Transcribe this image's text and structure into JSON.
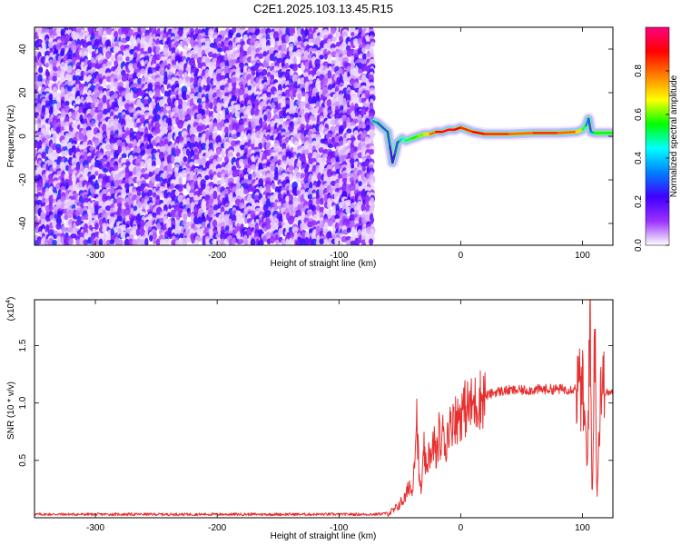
{
  "chart_data": [
    {
      "type": "heatmap",
      "title": "C2E1.2025.103.13.45.R15",
      "xlabel": "Height of straight line (km)",
      "ylabel": "Frequency (Hz)",
      "xlim": [
        -350,
        125
      ],
      "ylim": [
        -50,
        50
      ],
      "x_ticks": [
        -300,
        -200,
        -100,
        0,
        100
      ],
      "x_tick_labels": [
        "-300",
        "-200",
        "-100",
        "0",
        "100"
      ],
      "y_ticks": [
        -40,
        -20,
        0,
        20,
        40
      ],
      "y_tick_labels": [
        "-40",
        "-20",
        "0",
        "20",
        "40"
      ],
      "noise_region_x": [
        -350,
        -72
      ],
      "noise_level": "low-medium random (0.0-0.2)",
      "signal_trace": {
        "x": [
          -72,
          -68,
          -64,
          -60,
          -58,
          -56,
          -54,
          -52,
          -50,
          -48,
          -45,
          -40,
          -35,
          -30,
          -25,
          -20,
          -15,
          -10,
          -5,
          0,
          5,
          10,
          20,
          40,
          60,
          80,
          95,
          100,
          103,
          105,
          107,
          110,
          125
        ],
        "freq_hz": [
          7,
          6,
          4,
          2,
          -5,
          -12,
          -8,
          -3,
          -2,
          -1,
          -2,
          -1,
          0,
          1,
          1,
          2,
          2,
          3,
          3,
          4,
          3,
          2,
          1,
          1,
          1.5,
          1.5,
          2,
          3,
          5,
          8,
          2,
          1.5,
          1.5
        ],
        "amplitude": [
          0.35,
          0.3,
          0.3,
          0.3,
          0.25,
          0.25,
          0.3,
          0.3,
          0.4,
          0.45,
          0.5,
          0.55,
          0.6,
          0.7,
          0.8,
          0.9,
          0.95,
          0.95,
          0.9,
          0.85,
          0.85,
          0.9,
          0.85,
          0.8,
          0.85,
          0.8,
          0.7,
          0.5,
          0.35,
          0.3,
          0.35,
          0.55,
          0.5
        ]
      },
      "colorbar": {
        "label": "Normalized spectral amplitude",
        "range": [
          0.0,
          1.0
        ],
        "ticks": [
          0.0,
          0.2,
          0.4,
          0.6,
          0.8
        ],
        "tick_labels": [
          "0.0",
          "0.2",
          "0.4",
          "0.6",
          "0.8"
        ],
        "colormap": [
          "#ffffff",
          "#9b30ff",
          "#3f00ff",
          "#0080ff",
          "#00ffff",
          "#00ff00",
          "#ffff00",
          "#ff8000",
          "#ff0000",
          "#ff0080"
        ]
      }
    },
    {
      "type": "line",
      "xlabel": "Height of straight line (km)",
      "ylabel": "SNR (10 * v/v)",
      "y_scale_label": "(x10",
      "y_scale_exp": "4",
      "xlim": [
        -350,
        125
      ],
      "ylim": [
        0,
        19000
      ],
      "x_ticks": [
        -300,
        -200,
        -100,
        0,
        100
      ],
      "x_tick_labels": [
        "-300",
        "-200",
        "-100",
        "0",
        "100"
      ],
      "y_ticks": [
        5000,
        10000,
        15000
      ],
      "y_tick_labels": [
        "0.5",
        "1.0",
        "1.5"
      ],
      "color": "#e63030",
      "series": [
        {
          "x": [
            -350,
            -300,
            -250,
            -200,
            -150,
            -100,
            -70,
            -60,
            -55,
            -50,
            -45,
            -42,
            -40,
            -38,
            -36,
            -34,
            -32,
            -30,
            -28,
            -26,
            -24,
            -22,
            -20,
            -18,
            -16,
            -14,
            -12,
            -10,
            -8,
            -6,
            -4,
            -2,
            0,
            2,
            5,
            10,
            15,
            20,
            25,
            30,
            40,
            50,
            60,
            70,
            80,
            90,
            95,
            100,
            102,
            104,
            106,
            108,
            110,
            112,
            115,
            118,
            120,
            125
          ],
          "values": [
            300,
            300,
            300,
            300,
            300,
            300,
            300,
            400,
            600,
            1200,
            1800,
            3000,
            2000,
            5500,
            9000,
            3000,
            2500,
            6000,
            3500,
            6500,
            4500,
            7000,
            5000,
            7500,
            6000,
            8000,
            5500,
            8500,
            7500,
            9500,
            8500,
            8800,
            9200,
            9400,
            9600,
            9800,
            10300,
            10600,
            10800,
            11000,
            11100,
            11100,
            11150,
            11200,
            11200,
            11200,
            11300,
            11100,
            8000,
            4000,
            18900,
            1000,
            17500,
            2000,
            12000,
            11000,
            10900,
            10900
          ]
        }
      ]
    }
  ]
}
